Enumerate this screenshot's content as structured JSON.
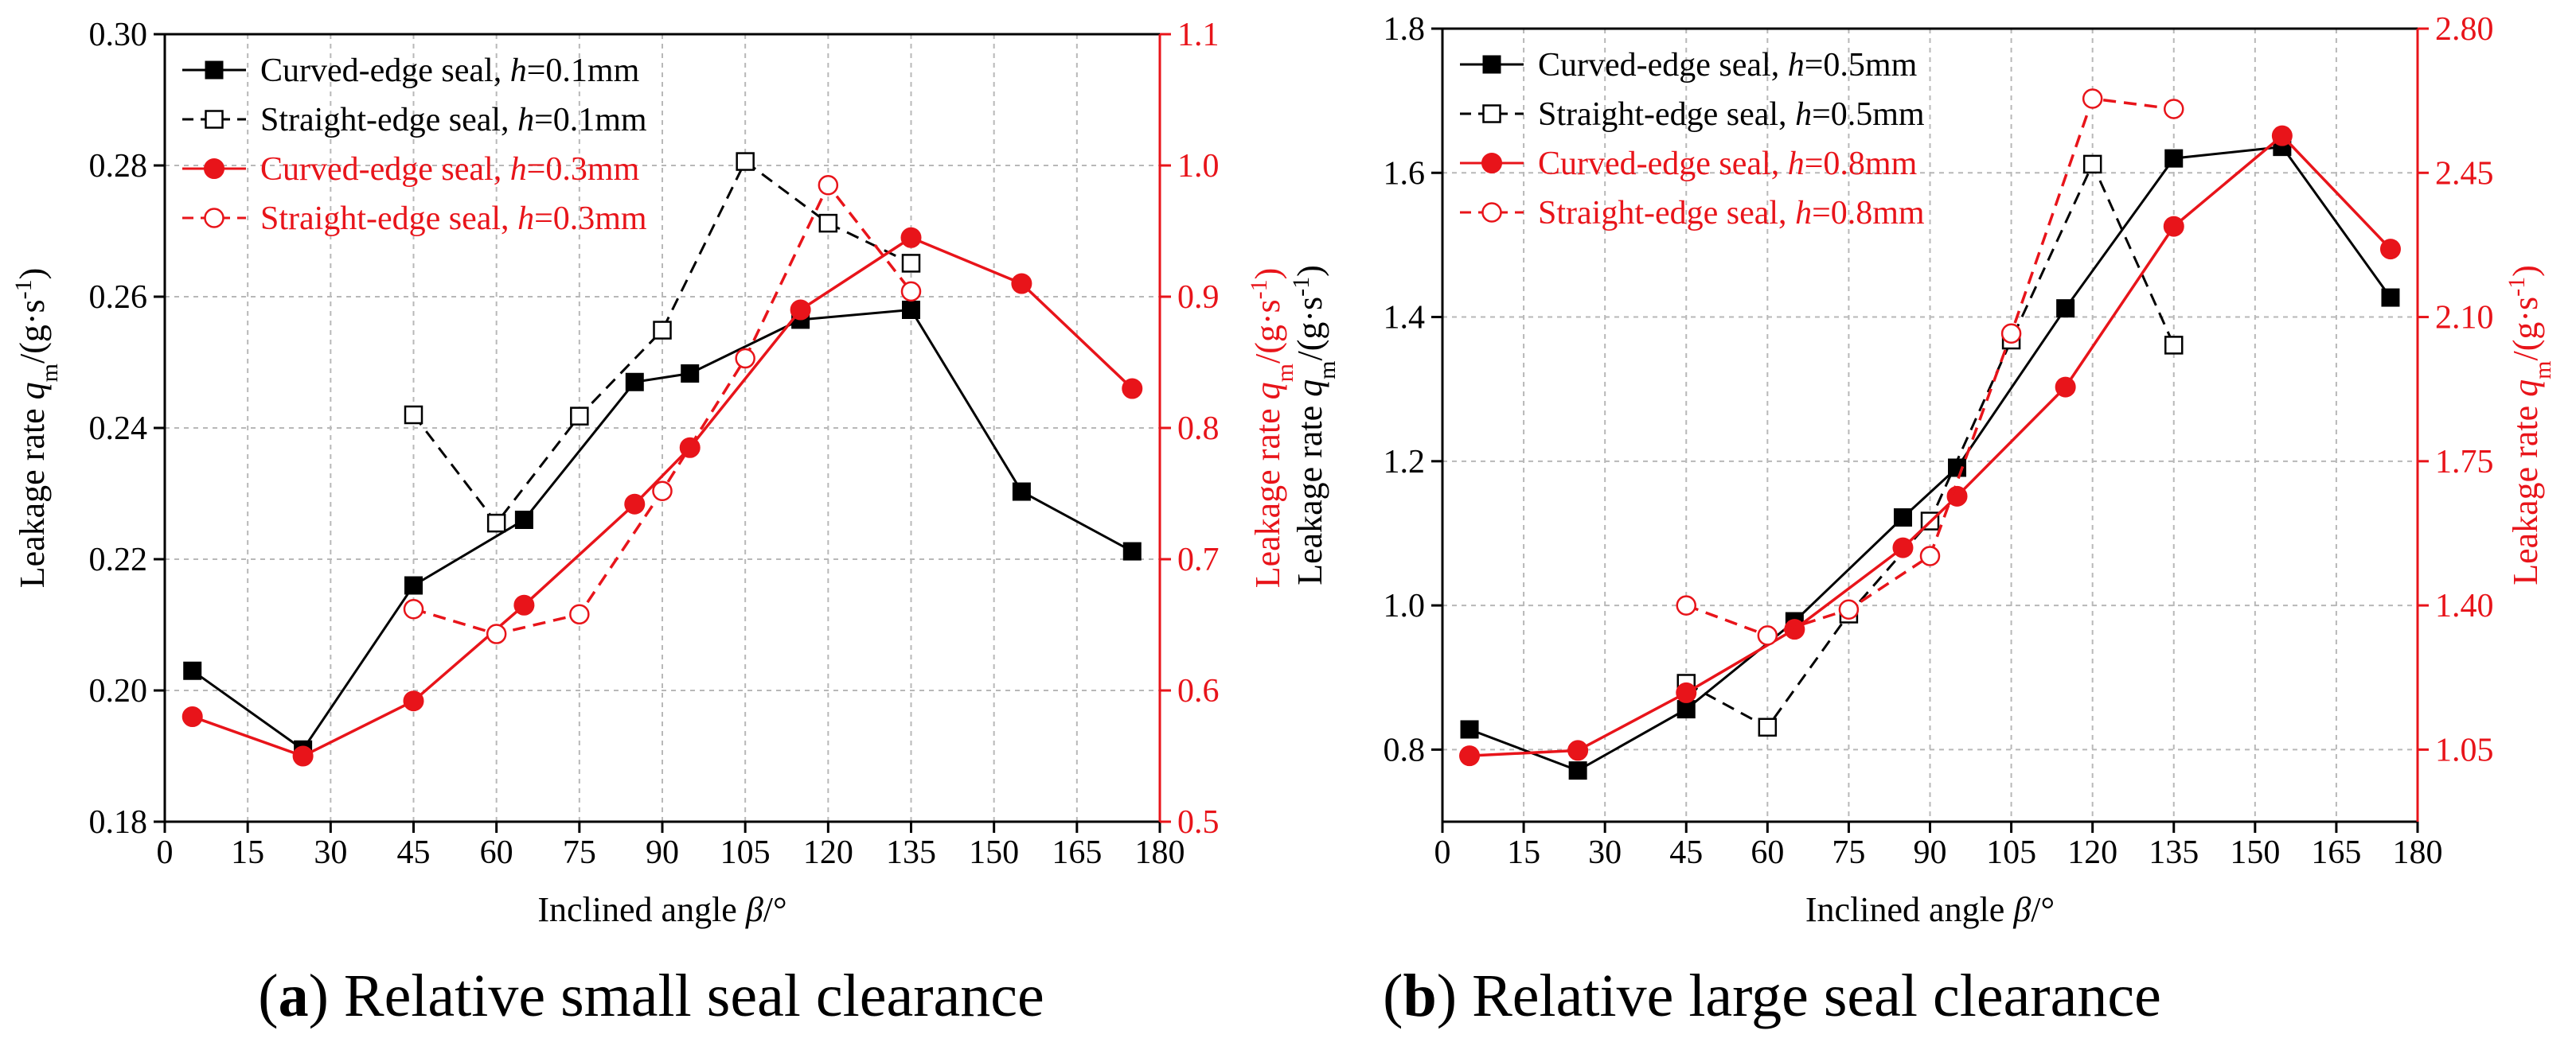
{
  "chart_data": [
    {
      "type": "line",
      "caption": {
        "letter": "a",
        "text": "Relative small seal clearance"
      },
      "xlabel": {
        "prefix": "Inclined angle ",
        "symbol": "β",
        "suffix": "/°"
      },
      "ylabel_left": {
        "prefix": "Leakage rate ",
        "symbol": "q",
        "sub": "m",
        "suffix": "/(g·s",
        "sup": "-1",
        "end": ")"
      },
      "ylabel_right": {
        "prefix": "Leakage rate ",
        "symbol": "q",
        "sub": "m",
        "suffix": "/(g·s",
        "sup": "-1",
        "end": ")"
      },
      "xlim": [
        0,
        180
      ],
      "xticks": [
        0,
        15,
        30,
        45,
        60,
        75,
        90,
        105,
        120,
        135,
        150,
        165,
        180
      ],
      "ylim_left": [
        0.18,
        0.3
      ],
      "yticks_left": [
        "0.18",
        "0.20",
        "0.22",
        "0.24",
        "0.26",
        "0.28",
        "0.30"
      ],
      "ylim_right": [
        0.5,
        1.1
      ],
      "yticks_right": [
        "0.5",
        "0.6",
        "0.7",
        "0.8",
        "0.9",
        "1.0",
        "1.1"
      ],
      "grid": true,
      "legend_position": "top-left",
      "series": [
        {
          "name": "Curved-edge seal, ",
          "param": "h",
          "value_label": "=0.1mm",
          "axis": "left",
          "color": "#000000",
          "dash": "solid",
          "marker": "square-filled",
          "x": [
            5,
            25,
            45,
            65,
            85,
            95,
            115,
            135,
            155,
            175
          ],
          "y": [
            0.203,
            0.191,
            0.216,
            0.226,
            0.247,
            0.2483,
            0.2565,
            0.258,
            0.2303,
            0.2212
          ]
        },
        {
          "name": "Straight-edge seal, ",
          "param": "h",
          "value_label": "=0.1mm",
          "axis": "left",
          "color": "#000000",
          "dash": "dashed",
          "marker": "square-open",
          "x": [
            45,
            60,
            75,
            90,
            105,
            120,
            135
          ],
          "y": [
            0.242,
            0.2255,
            0.2418,
            0.2549,
            0.2806,
            0.2712,
            0.2651
          ]
        },
        {
          "name": "Curved-edge seal, ",
          "param": "h",
          "value_label": "=0.3mm",
          "axis": "right",
          "color": "#e8141a",
          "dash": "solid",
          "marker": "circle-filled",
          "x": [
            5,
            25,
            45,
            65,
            85,
            95,
            115,
            135,
            155,
            175
          ],
          "y": [
            0.58,
            0.55,
            0.592,
            0.665,
            0.742,
            0.785,
            0.89,
            0.945,
            0.91,
            0.83
          ]
        },
        {
          "name": "Straight-edge seal, ",
          "param": "h",
          "value_label": "=0.3mm",
          "axis": "right",
          "color": "#e8141a",
          "dash": "dashed",
          "marker": "circle-open",
          "x": [
            45,
            60,
            75,
            90,
            105,
            120,
            135
          ],
          "y": [
            0.662,
            0.643,
            0.658,
            0.752,
            0.853,
            0.985,
            0.904
          ]
        }
      ]
    },
    {
      "type": "line",
      "caption": {
        "letter": "b",
        "text": "Relative large seal clearance"
      },
      "xlabel": {
        "prefix": "Inclined angle ",
        "symbol": "β",
        "suffix": "/°"
      },
      "ylabel_left": {
        "prefix": "Leakage rate ",
        "symbol": "q",
        "sub": "m",
        "suffix": "/(g·s",
        "sup": "-1",
        "end": ")"
      },
      "ylabel_right": {
        "prefix": "Leakage rate ",
        "symbol": "q",
        "sub": "m",
        "suffix": "/(g·s",
        "sup": "-1",
        "end": ")"
      },
      "xlim": [
        0,
        180
      ],
      "xticks": [
        0,
        15,
        30,
        45,
        60,
        75,
        90,
        105,
        120,
        135,
        150,
        165,
        180
      ],
      "ylim_left": [
        0.7,
        1.8
      ],
      "yticks_left": [
        "0.8",
        "1.0",
        "1.2",
        "1.4",
        "1.6",
        "1.8"
      ],
      "ylim_right": [
        0.875,
        2.8
      ],
      "yticks_right": [
        "1.05",
        "1.40",
        "1.75",
        "2.10",
        "2.45",
        "2.80"
      ],
      "grid": true,
      "legend_position": "top-left",
      "series": [
        {
          "name": "Curved-edge seal, ",
          "param": "h",
          "value_label": "=0.5mm",
          "axis": "left",
          "color": "#000000",
          "dash": "solid",
          "marker": "square-filled",
          "x": [
            5,
            25,
            45,
            65,
            85,
            95,
            115,
            135,
            155,
            175
          ],
          "y": [
            0.828,
            0.771,
            0.856,
            0.978,
            1.122,
            1.191,
            1.412,
            1.62,
            1.636,
            1.427
          ]
        },
        {
          "name": "Straight-edge seal, ",
          "param": "h",
          "value_label": "=0.5mm",
          "axis": "left",
          "color": "#000000",
          "dash": "dashed",
          "marker": "square-open",
          "x": [
            45,
            60,
            75,
            90,
            105,
            120,
            135
          ],
          "y": [
            0.892,
            0.831,
            0.988,
            1.117,
            1.368,
            1.612,
            1.361
          ]
        },
        {
          "name": "Curved-edge seal, ",
          "param": "h",
          "value_label": "=0.8mm",
          "axis": "right",
          "color": "#e8141a",
          "dash": "solid",
          "marker": "circle-filled",
          "x": [
            5,
            25,
            45,
            65,
            85,
            95,
            115,
            135,
            155,
            175
          ],
          "y": [
            1.035,
            1.048,
            1.188,
            1.342,
            1.54,
            1.665,
            1.93,
            2.32,
            2.54,
            2.265
          ]
        },
        {
          "name": "Straight-edge seal, ",
          "param": "h",
          "value_label": "=0.8mm",
          "axis": "right",
          "color": "#e8141a",
          "dash": "dashed",
          "marker": "circle-open",
          "x": [
            45,
            60,
            75,
            90,
            105,
            120,
            135
          ],
          "y": [
            1.4,
            1.327,
            1.39,
            1.52,
            2.06,
            2.63,
            2.605
          ]
        }
      ]
    }
  ]
}
